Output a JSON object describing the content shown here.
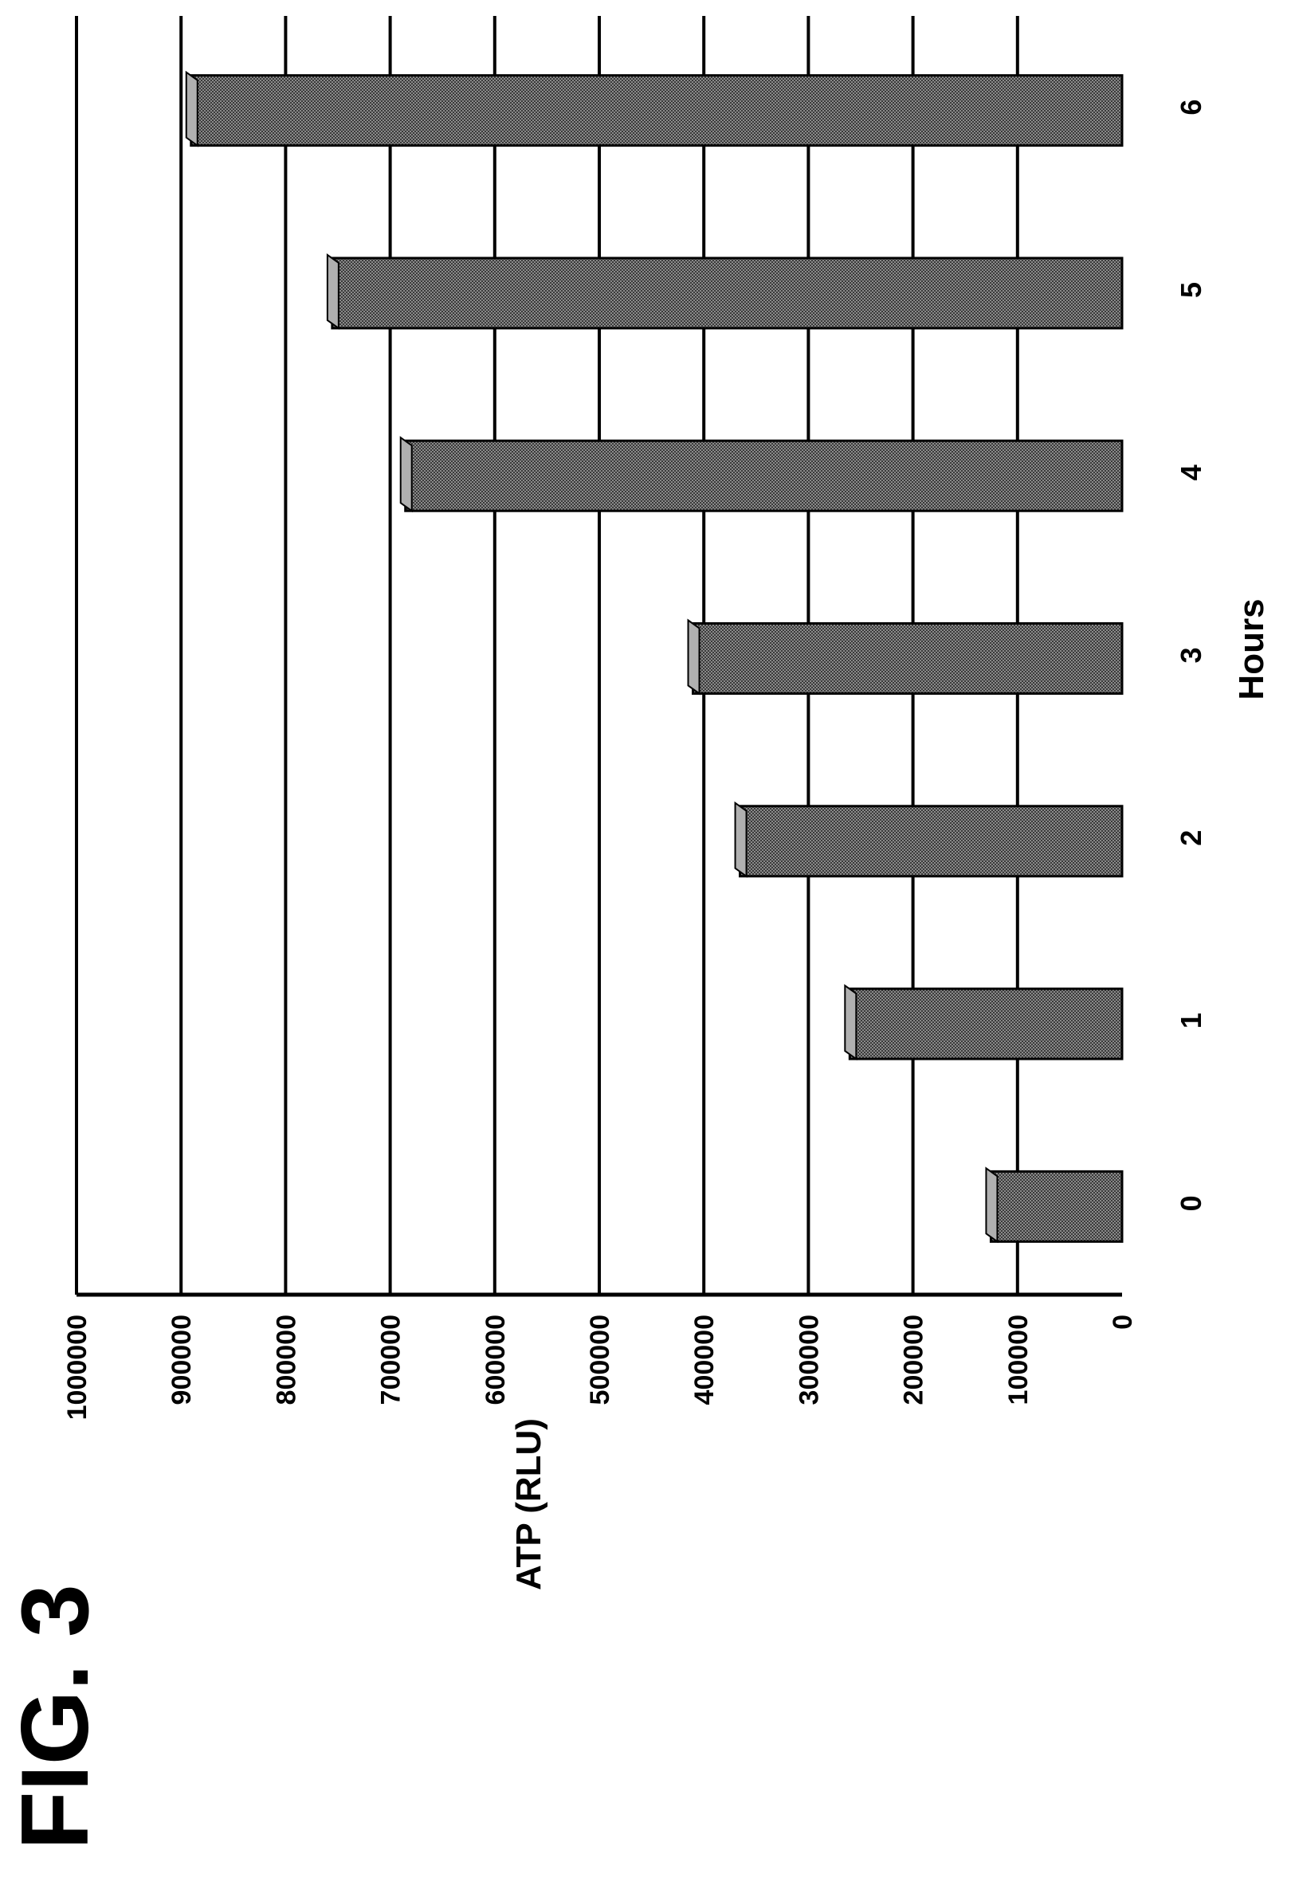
{
  "figure": {
    "label": "FIG. 3"
  },
  "chart_data": {
    "type": "bar",
    "orientation": "rotated 90 degrees clockwise",
    "title": "",
    "xlabel": "Hours",
    "ylabel": "ATP (RLU)",
    "categories": [
      "0",
      "1",
      "2",
      "3",
      "4",
      "5",
      "6"
    ],
    "values": [
      130000,
      265000,
      370000,
      415000,
      690000,
      760000,
      895000
    ],
    "ylim": [
      0,
      1000000
    ],
    "yticks": [
      0,
      100000,
      200000,
      300000,
      400000,
      500000,
      600000,
      700000,
      800000,
      900000,
      1000000
    ],
    "ytick_labels": [
      "0",
      "100000",
      "200000",
      "300000",
      "400000",
      "500000",
      "600000",
      "700000",
      "800000",
      "900000",
      "1000000"
    ],
    "grid": true,
    "legend": "none",
    "bar_color": "#6e6e6e",
    "bar_edge_color": "#000000"
  }
}
